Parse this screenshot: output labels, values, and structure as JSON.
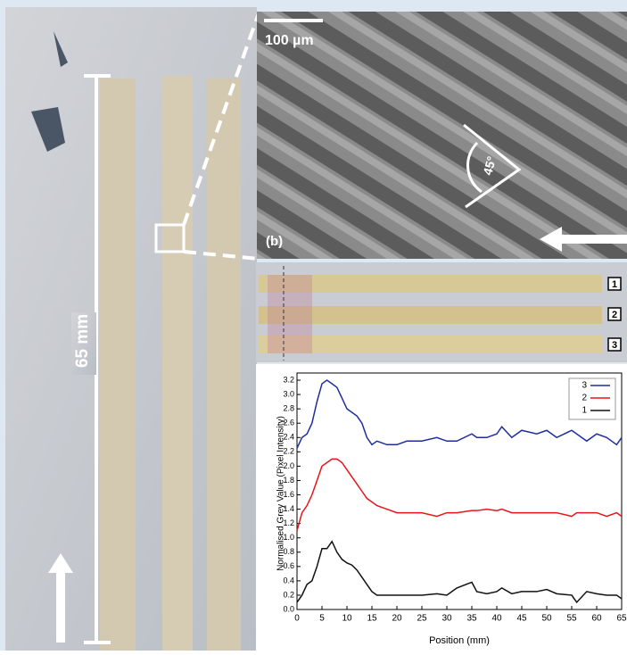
{
  "figure": {
    "scale_length": "65 mm",
    "scale_bar": "100 µm",
    "panel_label": "(b)",
    "angle": "45°",
    "strip_labels": [
      "1",
      "2",
      "3"
    ]
  },
  "chart_data": {
    "type": "line",
    "x_label": "Position (mm)",
    "y_label": "Normalised Grey Value (Pixel Intensity)",
    "x": [
      0,
      1,
      2,
      3,
      4,
      5,
      6,
      7,
      8,
      9,
      10,
      11,
      12,
      13,
      14,
      15,
      16,
      18,
      20,
      22,
      25,
      28,
      30,
      32,
      35,
      36,
      38,
      40,
      41,
      43,
      45,
      48,
      50,
      52,
      55,
      56,
      58,
      60,
      62,
      64,
      65
    ],
    "series": [
      {
        "name": "3",
        "color": "#1f2f9e",
        "values": [
          2.25,
          2.4,
          2.45,
          2.6,
          2.9,
          3.15,
          3.2,
          3.15,
          3.1,
          2.95,
          2.8,
          2.75,
          2.7,
          2.6,
          2.4,
          2.3,
          2.35,
          2.3,
          2.3,
          2.35,
          2.35,
          2.4,
          2.35,
          2.35,
          2.45,
          2.4,
          2.4,
          2.45,
          2.55,
          2.4,
          2.5,
          2.45,
          2.5,
          2.4,
          2.5,
          2.45,
          2.35,
          2.45,
          2.4,
          2.3,
          2.4
        ]
      },
      {
        "name": "2",
        "color": "#e8141c",
        "values": [
          1.1,
          1.35,
          1.45,
          1.6,
          1.8,
          2.0,
          2.05,
          2.1,
          2.1,
          2.05,
          1.95,
          1.85,
          1.75,
          1.65,
          1.55,
          1.5,
          1.45,
          1.4,
          1.35,
          1.35,
          1.35,
          1.3,
          1.35,
          1.35,
          1.38,
          1.38,
          1.4,
          1.38,
          1.4,
          1.35,
          1.35,
          1.35,
          1.35,
          1.35,
          1.3,
          1.35,
          1.35,
          1.35,
          1.3,
          1.35,
          1.3
        ]
      },
      {
        "name": "1",
        "color": "#111111",
        "values": [
          0.1,
          0.2,
          0.35,
          0.4,
          0.6,
          0.85,
          0.85,
          0.95,
          0.8,
          0.7,
          0.65,
          0.62,
          0.55,
          0.45,
          0.35,
          0.25,
          0.2,
          0.2,
          0.2,
          0.2,
          0.2,
          0.22,
          0.2,
          0.3,
          0.38,
          0.25,
          0.22,
          0.25,
          0.3,
          0.22,
          0.25,
          0.25,
          0.28,
          0.22,
          0.2,
          0.1,
          0.25,
          0.22,
          0.2,
          0.2,
          0.15
        ]
      }
    ],
    "xlim": [
      0,
      65
    ],
    "xticks": [
      0,
      5,
      10,
      15,
      20,
      25,
      30,
      35,
      40,
      45,
      50,
      55,
      60,
      65
    ],
    "ylim": [
      0,
      3.3
    ],
    "yticks": [
      {
        "value": 0,
        "label": "0.0"
      },
      0.2,
      0.4,
      0.6,
      0.8,
      {
        "value": 1,
        "label": "1.0"
      },
      1.2,
      1.4,
      1.6,
      1.8,
      {
        "value": 2,
        "label": "2.0"
      },
      2.2,
      2.4,
      2.6,
      2.8,
      {
        "value": 3,
        "label": "3.0"
      },
      3.2
    ],
    "grid": false,
    "legend": "upper right"
  }
}
